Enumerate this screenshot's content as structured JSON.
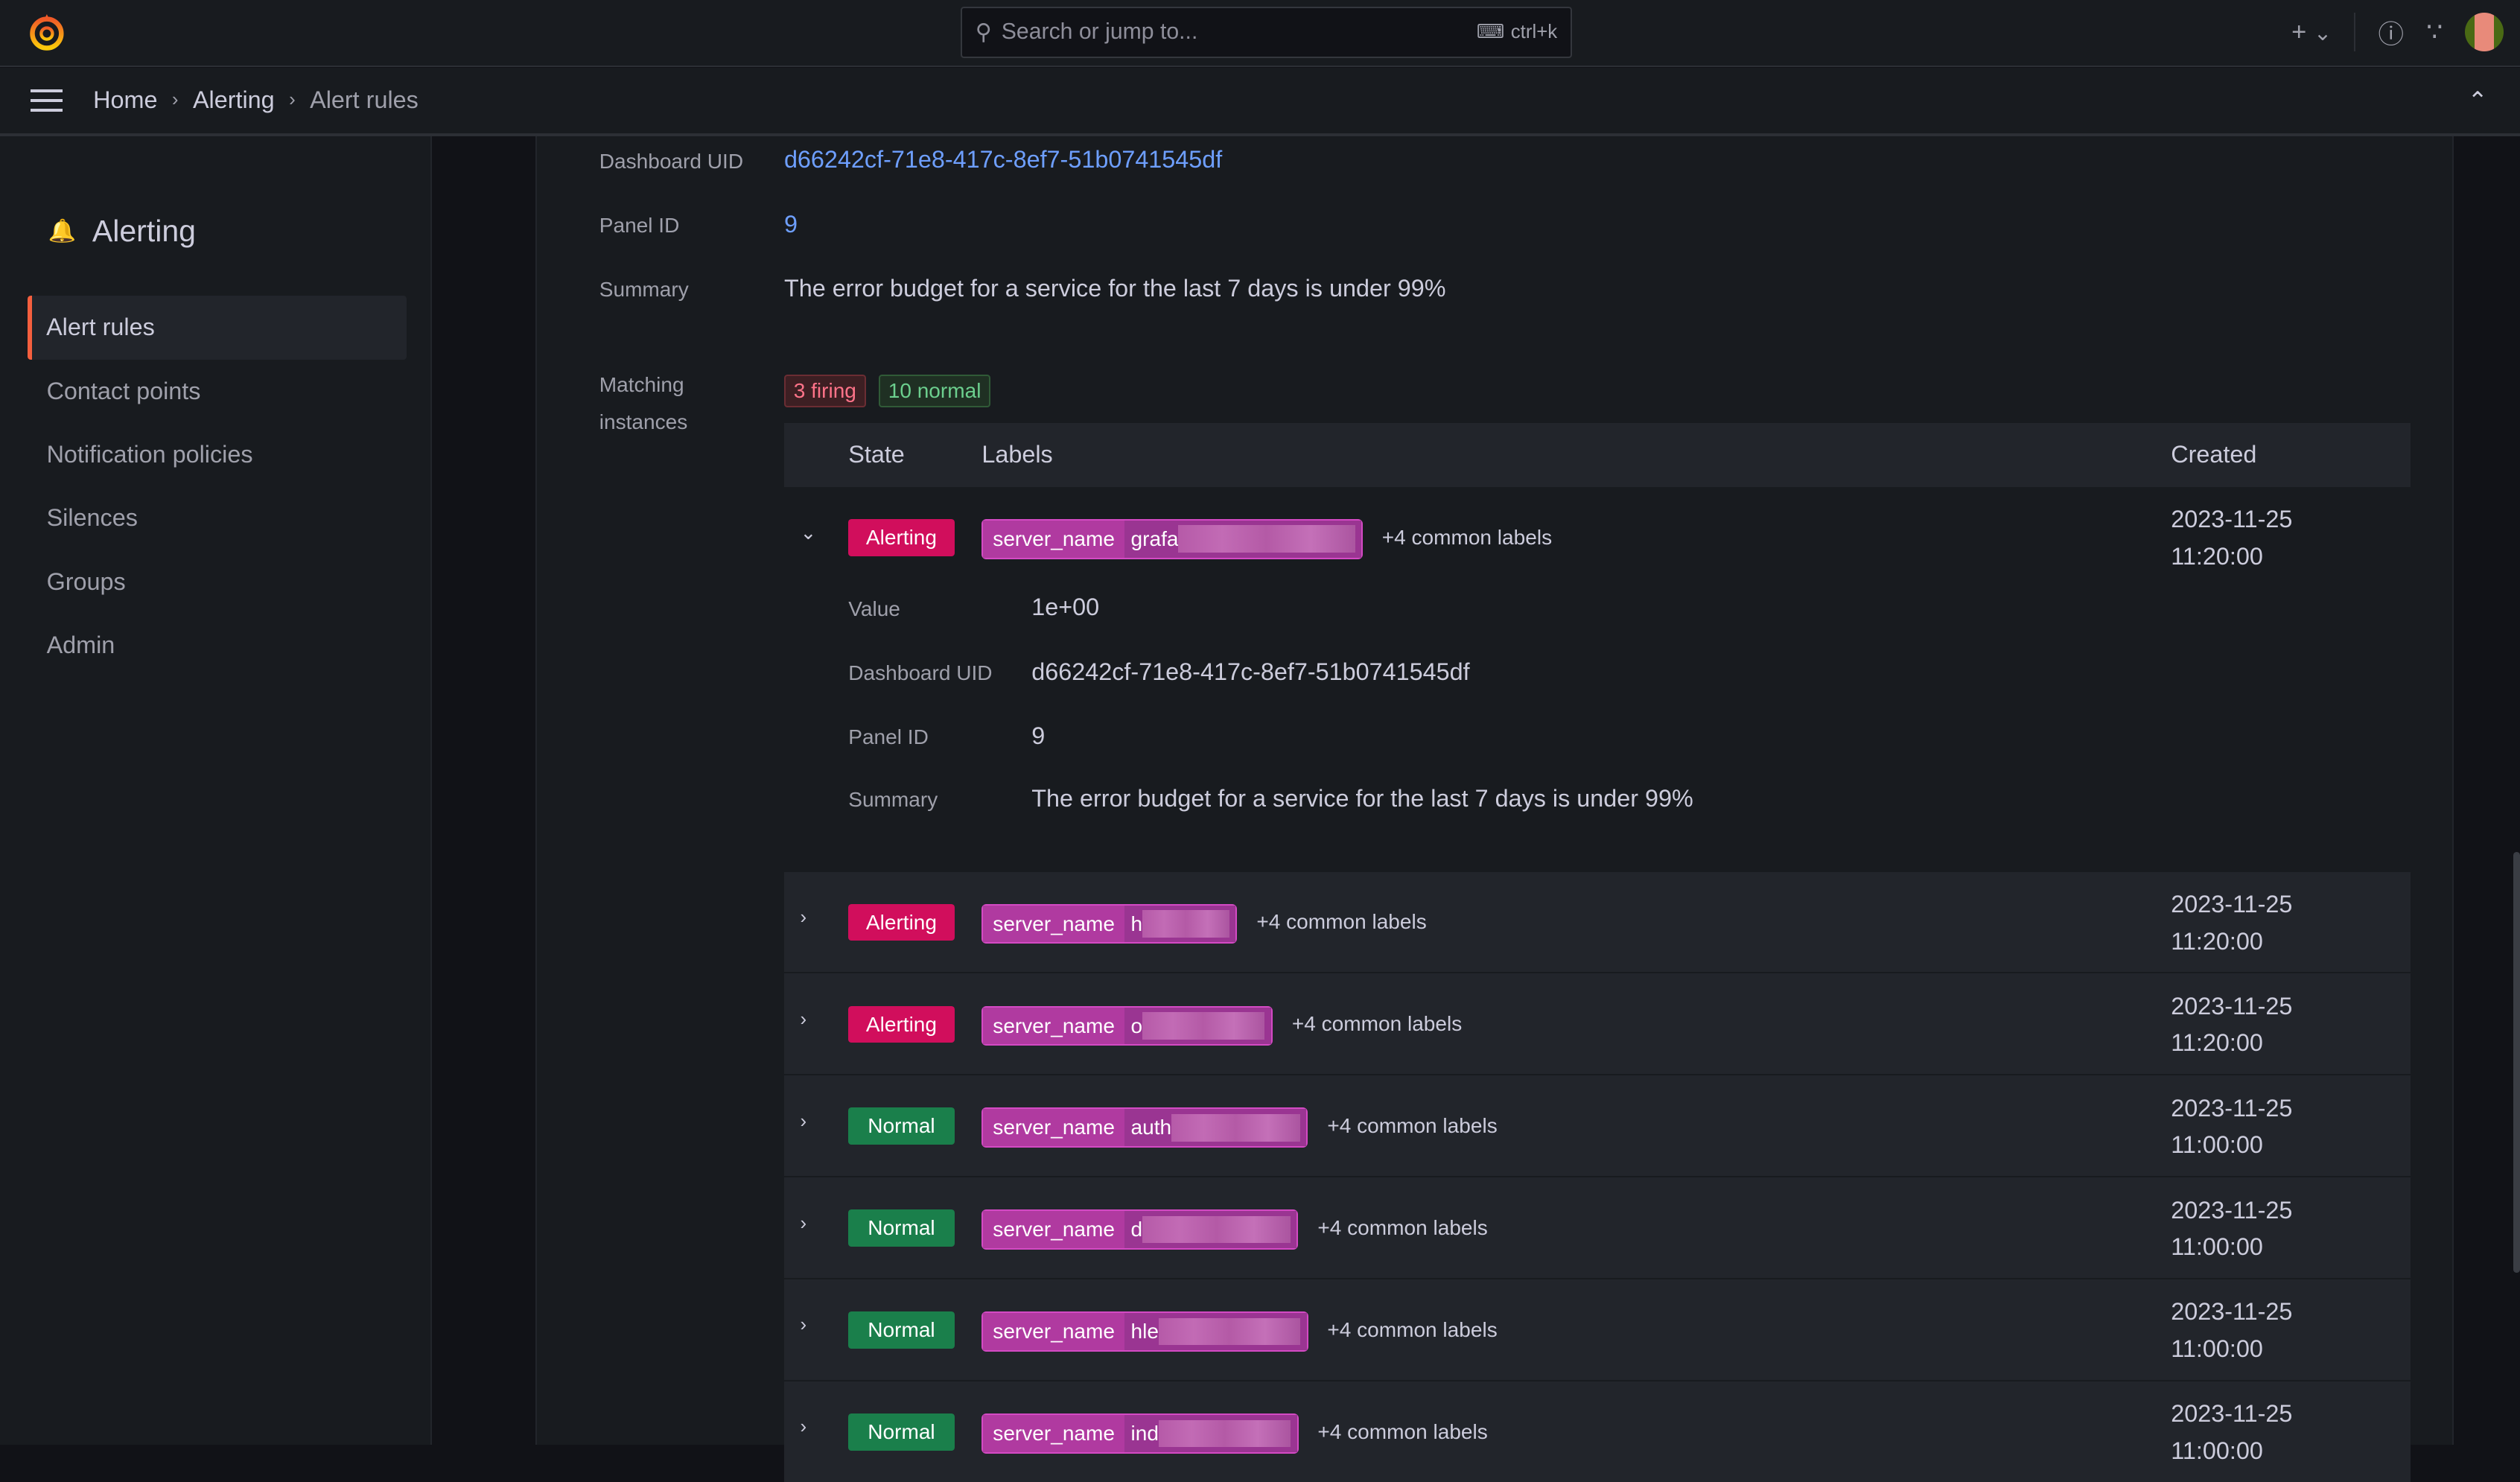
{
  "topbar": {
    "search_placeholder": "Search or jump to...",
    "shortcut": "ctrl+k",
    "add_icon": "plus-icon",
    "help_icon": "help-icon",
    "news_icon": "rss-icon"
  },
  "breadcrumb": [
    "Home",
    "Alerting",
    "Alert rules"
  ],
  "sidebar": {
    "title": "Alerting",
    "items": [
      {
        "label": "Alert rules",
        "active": true
      },
      {
        "label": "Contact points"
      },
      {
        "label": "Notification policies"
      },
      {
        "label": "Silences"
      },
      {
        "label": "Groups"
      },
      {
        "label": "Admin"
      }
    ]
  },
  "rule": {
    "dashboard_uid_label": "Dashboard UID",
    "dashboard_uid": "d66242cf-71e8-417c-8ef7-51b0741545df",
    "panel_id_label": "Panel ID",
    "panel_id": "9",
    "summary_label": "Summary",
    "summary": "The error budget for a service for the last 7 days is under 99%",
    "matching_label": "Matching instances",
    "firing": "3 firing",
    "normal": "10 normal"
  },
  "table": {
    "headers": {
      "state": "State",
      "labels": "Labels",
      "created": "Created"
    },
    "expanded": {
      "value_label": "Value",
      "value": "1e+00",
      "dashboard_uid_label": "Dashboard UID",
      "dashboard_uid": "d66242cf-71e8-417c-8ef7-51b0741545df",
      "panel_id_label": "Panel ID",
      "panel_id": "9",
      "summary_label": "Summary",
      "summary": "The error budget for a service for the last 7 days is under 99%"
    },
    "rows": [
      {
        "state": "Alerting",
        "label_key": "server_name",
        "label_value": "grafa",
        "common": "+4 common labels",
        "date": "2023-11-25",
        "time": "11:20:00"
      },
      {
        "state": "Alerting",
        "label_key": "server_name",
        "label_value": "h",
        "common": "+4 common labels",
        "date": "2023-11-25",
        "time": "11:20:00"
      },
      {
        "state": "Alerting",
        "label_key": "server_name",
        "label_value": "o",
        "common": "+4 common labels",
        "date": "2023-11-25",
        "time": "11:20:00"
      },
      {
        "state": "Normal",
        "label_key": "server_name",
        "label_value": "auth",
        "common": "+4 common labels",
        "date": "2023-11-25",
        "time": "11:00:00"
      },
      {
        "state": "Normal",
        "label_key": "server_name",
        "label_value": "d",
        "common": "+4 common labels",
        "date": "2023-11-25",
        "time": "11:00:00"
      },
      {
        "state": "Normal",
        "label_key": "server_name",
        "label_value": "hle",
        "common": "+4 common labels",
        "date": "2023-11-25",
        "time": "11:00:00"
      },
      {
        "state": "Normal",
        "label_key": "server_name",
        "label_value": "ind",
        "common": "+4 common labels",
        "date": "2023-11-25",
        "time": "11:00:00"
      }
    ]
  },
  "colors": {
    "alerting": "#d10e5c",
    "normal": "#1a7f4b",
    "label": "#b03aa0",
    "link": "#6e9fff",
    "accent": "#f55f3e"
  }
}
